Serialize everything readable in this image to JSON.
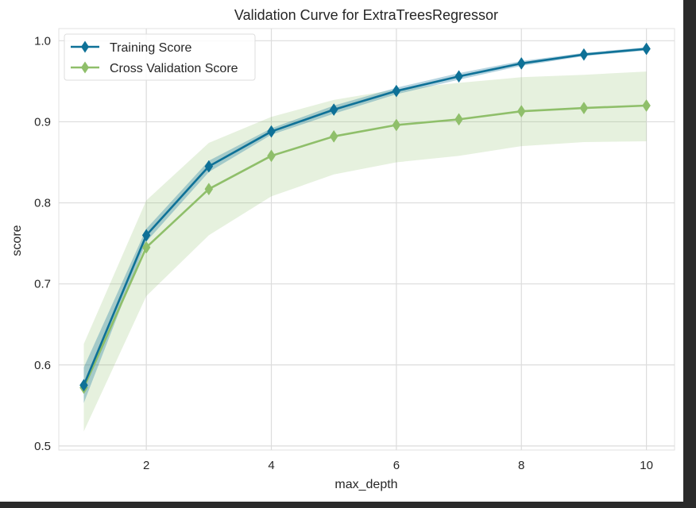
{
  "chart_data": {
    "type": "line",
    "title": "Validation Curve for ExtraTreesRegressor",
    "xlabel": "max_depth",
    "ylabel": "score",
    "xlim": [
      0.6,
      10.45
    ],
    "ylim": [
      0.495,
      1.015
    ],
    "xticks": [
      2,
      4,
      6,
      8,
      10
    ],
    "xtick_labels": [
      "2",
      "4",
      "6",
      "8",
      "10"
    ],
    "yticks": [
      0.5,
      0.6,
      0.7,
      0.8,
      0.9,
      1.0
    ],
    "ytick_labels": [
      "0.5",
      "0.6",
      "0.7",
      "0.8",
      "0.9",
      "1.0"
    ],
    "grid": true,
    "legend_position": "top-left",
    "x": [
      1,
      2,
      3,
      4,
      5,
      6,
      7,
      8,
      9,
      10
    ],
    "series": [
      {
        "name": "Training Score",
        "color": "#0e7197",
        "marker": "diamond",
        "values": [
          0.575,
          0.76,
          0.845,
          0.888,
          0.915,
          0.938,
          0.956,
          0.972,
          0.983,
          0.99
        ],
        "band_lower": [
          0.553,
          0.752,
          0.838,
          0.884,
          0.91,
          0.934,
          0.952,
          0.969,
          0.981,
          0.988
        ],
        "band_upper": [
          0.597,
          0.768,
          0.852,
          0.892,
          0.92,
          0.942,
          0.96,
          0.975,
          0.985,
          0.992
        ]
      },
      {
        "name": "Cross Validation Score",
        "color": "#8fbf6a",
        "marker": "diamond",
        "values": [
          0.572,
          0.745,
          0.817,
          0.858,
          0.882,
          0.896,
          0.903,
          0.913,
          0.917,
          0.92
        ],
        "band_lower": [
          0.518,
          0.685,
          0.76,
          0.808,
          0.835,
          0.85,
          0.858,
          0.87,
          0.875,
          0.876
        ],
        "band_upper": [
          0.626,
          0.803,
          0.874,
          0.906,
          0.927,
          0.94,
          0.948,
          0.955,
          0.958,
          0.962
        ]
      }
    ]
  }
}
